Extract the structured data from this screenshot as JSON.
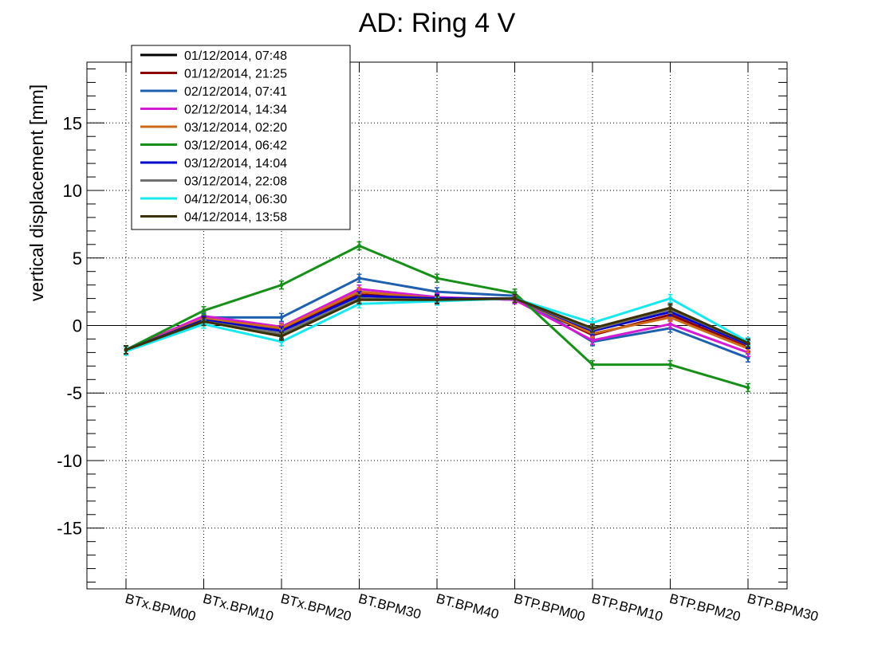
{
  "chart_data": {
    "type": "line",
    "title": "AD: Ring 4 V",
    "xlabel": "",
    "ylabel": "vertical displacement [mm]",
    "ylim": [
      -19.5,
      19.5
    ],
    "yticks": [
      -15,
      -10,
      -5,
      0,
      5,
      10,
      15
    ],
    "grid": true,
    "zero_line": true,
    "legend_position": "top-left",
    "categories": [
      "BTx.BPM00",
      "BTx.BPM10",
      "BTx.BPM20",
      "BT.BPM30",
      "BT.BPM40",
      "BTP.BPM00",
      "BTP.BPM10",
      "BTP.BPM20",
      "BTP.BPM30"
    ],
    "series": [
      {
        "name": "01/12/2014, 07:48",
        "color": "#000000",
        "values": [
          -1.8,
          0.3,
          -0.7,
          2.0,
          1.9,
          2.0,
          -0.3,
          1.3,
          -1.3
        ]
      },
      {
        "name": "01/12/2014, 21:25",
        "color": "#8b0000",
        "values": [
          -1.8,
          0.5,
          -0.3,
          2.3,
          2.0,
          2.0,
          -0.7,
          0.8,
          -1.6
        ]
      },
      {
        "name": "02/12/2014, 07:41",
        "color": "#1f5faf",
        "values": [
          -1.8,
          0.6,
          0.6,
          3.5,
          2.5,
          2.2,
          -1.2,
          -0.2,
          -2.4
        ]
      },
      {
        "name": "02/12/2014, 14:34",
        "color": "#d21bd2",
        "values": [
          -1.8,
          0.7,
          -0.1,
          2.7,
          2.1,
          1.9,
          -1.1,
          0.1,
          -2.0
        ]
      },
      {
        "name": "03/12/2014, 02:20",
        "color": "#cc6a1a",
        "values": [
          -1.8,
          0.5,
          -0.2,
          2.5,
          2.0,
          2.0,
          -0.6,
          0.6,
          -1.7
        ]
      },
      {
        "name": "03/12/2014, 06:42",
        "color": "#17901a",
        "values": [
          -1.8,
          1.1,
          3.0,
          5.9,
          3.5,
          2.4,
          -2.9,
          -2.9,
          -4.6
        ]
      },
      {
        "name": "03/12/2014, 14:04",
        "color": "#0000cc",
        "values": [
          -1.8,
          0.4,
          -0.4,
          2.2,
          2.0,
          2.0,
          -0.4,
          1.0,
          -1.4
        ]
      },
      {
        "name": "03/12/2014, 22:08",
        "color": "#707070",
        "values": [
          -1.8,
          0.3,
          -0.6,
          2.0,
          1.9,
          2.0,
          -0.3,
          1.2,
          -1.3
        ]
      },
      {
        "name": "04/12/2014, 06:30",
        "color": "#17e8ef",
        "values": [
          -1.9,
          0.1,
          -1.2,
          1.6,
          1.8,
          2.0,
          0.2,
          2.0,
          -1.2
        ]
      },
      {
        "name": "04/12/2014, 13:58",
        "color": "#3a3000",
        "values": [
          -1.8,
          0.3,
          -0.8,
          1.9,
          1.9,
          2.0,
          -0.2,
          1.3,
          -1.3
        ]
      }
    ]
  }
}
